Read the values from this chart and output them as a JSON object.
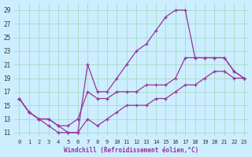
{
  "xlabel": "Windchill (Refroidissement éolien,°C)",
  "bg_color": "#cceeff",
  "grid_color": "#aaddcc",
  "line_color": "#993399",
  "x_ticks": [
    0,
    1,
    2,
    3,
    4,
    5,
    6,
    7,
    8,
    9,
    10,
    11,
    12,
    13,
    14,
    15,
    16,
    17,
    18,
    19,
    20,
    21,
    22,
    23
  ],
  "y_ticks": [
    11,
    13,
    15,
    17,
    19,
    21,
    23,
    25,
    27,
    29
  ],
  "xlim": [
    -0.5,
    23.5
  ],
  "ylim": [
    10.5,
    30.0
  ],
  "series": [
    {
      "x": [
        0,
        1,
        2,
        3,
        4,
        5,
        6,
        7,
        8,
        9,
        10,
        11,
        12,
        13,
        14,
        15,
        16,
        17,
        18,
        19,
        20,
        21,
        22,
        23
      ],
      "y": [
        16,
        14,
        13,
        13,
        12,
        11,
        11,
        21,
        17,
        17,
        19,
        21,
        23,
        24,
        26,
        28,
        29,
        29,
        22,
        22,
        22,
        22,
        20,
        19
      ]
    },
    {
      "x": [
        0,
        1,
        2,
        3,
        4,
        5,
        6,
        7,
        8,
        9,
        10,
        11,
        12,
        13,
        14,
        15,
        16,
        17,
        18,
        19,
        20,
        21,
        22,
        23
      ],
      "y": [
        16,
        14,
        13,
        13,
        12,
        12,
        13,
        17,
        16,
        16,
        17,
        17,
        17,
        18,
        18,
        18,
        19,
        22,
        22,
        22,
        22,
        22,
        20,
        19
      ]
    },
    {
      "x": [
        0,
        1,
        2,
        3,
        4,
        5,
        6,
        7,
        8,
        9,
        10,
        11,
        12,
        13,
        14,
        15,
        16,
        17,
        18,
        19,
        20,
        21,
        22,
        23
      ],
      "y": [
        16,
        14,
        13,
        12,
        11,
        11,
        11,
        13,
        12,
        13,
        14,
        15,
        15,
        15,
        16,
        16,
        17,
        18,
        18,
        19,
        20,
        20,
        19,
        19
      ]
    }
  ]
}
